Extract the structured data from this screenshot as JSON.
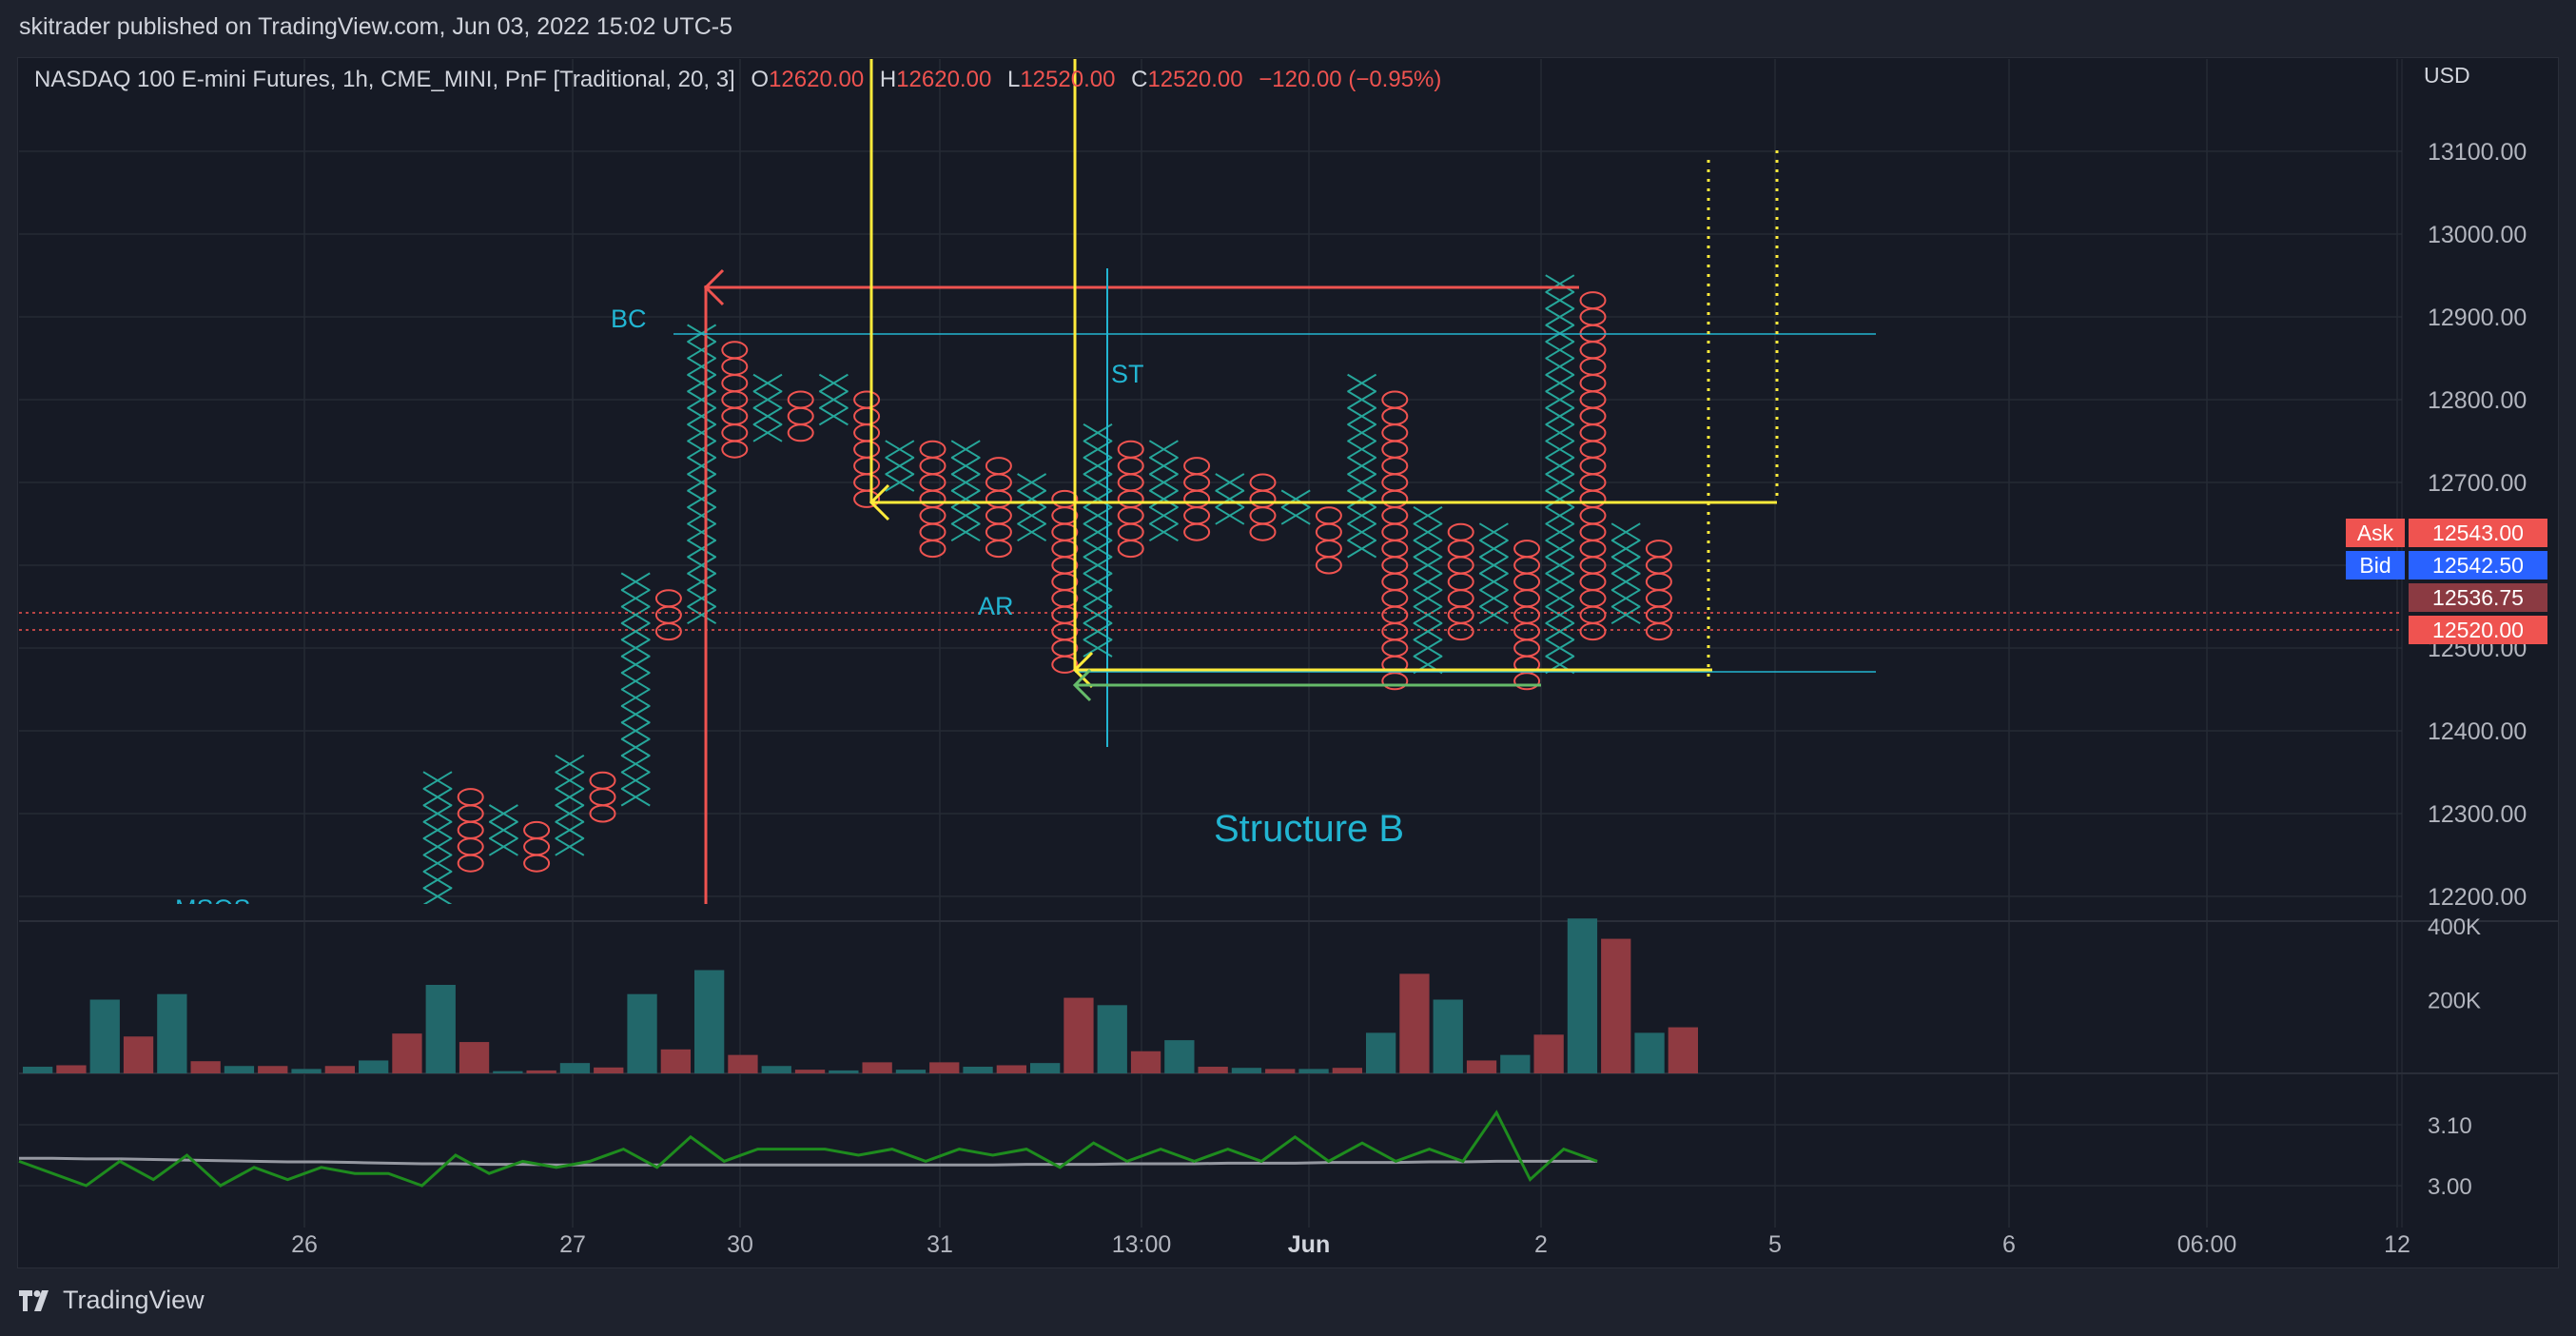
{
  "header": {
    "published": "skitrader published on TradingView.com, Jun 03, 2022 15:02 UTC-5"
  },
  "legend": {
    "symbol": "NASDAQ 100 E-mini Futures, 1h, CME_MINI, PnF [Traditional, 20, 3]",
    "o_label": "O",
    "o_value": "12620.00",
    "h_label": "H",
    "h_value": "12620.00",
    "l_label": "L",
    "l_value": "12520.00",
    "c_label": "C",
    "c_value": "12520.00",
    "change": "−120.00 (−0.95%)"
  },
  "currency": "USD",
  "price_tags": {
    "ask_label": "Ask",
    "ask_value": "12543.00",
    "bid_label": "Bid",
    "bid_value": "12542.50",
    "mid_value": "12536.75",
    "last_value": "12520.00"
  },
  "footer": {
    "brand": "TradingView"
  },
  "colors": {
    "up": "#26a69a",
    "down": "#ef5350",
    "yellow": "#ffeb3b",
    "cyan": "#22b5d2",
    "green": "#66bb6a",
    "text": "#b2b5be",
    "grid": "#252a35"
  },
  "chart_data": {
    "type": "point-and-figure",
    "box_size": 20,
    "reversal": 3,
    "price_axis": {
      "ticks": [
        "12200.00",
        "12300.00",
        "12400.00",
        "12500.00",
        "12600.00",
        "12700.00",
        "12800.00",
        "12900.00",
        "13000.00",
        "13100.00"
      ]
    },
    "time_axis": {
      "ticks": [
        "26",
        "27",
        "30",
        "31",
        "13:00",
        "Jun",
        "2",
        "5",
        "6",
        "06:00",
        "12"
      ]
    },
    "columns": [
      {
        "type": "X",
        "low": 12200,
        "high": 12340
      },
      {
        "type": "O",
        "low": 12240,
        "high": 12320
      },
      {
        "type": "X",
        "low": 12260,
        "high": 12300
      },
      {
        "type": "O",
        "low": 12240,
        "high": 12280
      },
      {
        "type": "X",
        "low": 12260,
        "high": 12360
      },
      {
        "type": "O",
        "low": 12300,
        "high": 12340
      },
      {
        "type": "X",
        "low": 12320,
        "high": 12580
      },
      {
        "type": "O",
        "low": 12520,
        "high": 12560
      },
      {
        "type": "X",
        "low": 12540,
        "high": 12880
      },
      {
        "type": "O",
        "low": 12740,
        "high": 12860
      },
      {
        "type": "X",
        "low": 12760,
        "high": 12820
      },
      {
        "type": "O",
        "low": 12760,
        "high": 12800
      },
      {
        "type": "X",
        "low": 12780,
        "high": 12820
      },
      {
        "type": "O",
        "low": 12680,
        "high": 12800
      },
      {
        "type": "X",
        "low": 12700,
        "high": 12740
      },
      {
        "type": "O",
        "low": 12620,
        "high": 12740
      },
      {
        "type": "X",
        "low": 12640,
        "high": 12740
      },
      {
        "type": "O",
        "low": 12620,
        "high": 12720
      },
      {
        "type": "X",
        "low": 12640,
        "high": 12700
      },
      {
        "type": "O",
        "low": 12480,
        "high": 12680
      },
      {
        "type": "X",
        "low": 12500,
        "high": 12760
      },
      {
        "type": "O",
        "low": 12620,
        "high": 12740
      },
      {
        "type": "X",
        "low": 12640,
        "high": 12740
      },
      {
        "type": "O",
        "low": 12640,
        "high": 12720
      },
      {
        "type": "X",
        "low": 12660,
        "high": 12700
      },
      {
        "type": "O",
        "low": 12640,
        "high": 12700
      },
      {
        "type": "X",
        "low": 12660,
        "high": 12680
      },
      {
        "type": "O",
        "low": 12600,
        "high": 12660
      },
      {
        "type": "X",
        "low": 12620,
        "high": 12820
      },
      {
        "type": "O",
        "low": 12460,
        "high": 12800
      },
      {
        "type": "X",
        "low": 12480,
        "high": 12660
      },
      {
        "type": "O",
        "low": 12520,
        "high": 12640
      },
      {
        "type": "X",
        "low": 12540,
        "high": 12640
      },
      {
        "type": "O",
        "low": 12460,
        "high": 12620
      },
      {
        "type": "X",
        "low": 12480,
        "high": 12940
      },
      {
        "type": "O",
        "low": 12520,
        "high": 12920
      },
      {
        "type": "X",
        "low": 12540,
        "high": 12640
      },
      {
        "type": "O",
        "low": 12520,
        "high": 12620
      }
    ],
    "volume": {
      "axis_ticks": [
        "400K",
        "200K"
      ],
      "bars": [
        {
          "v": 18000,
          "d": "up"
        },
        {
          "v": 22000,
          "d": "down"
        },
        {
          "v": 200000,
          "d": "up"
        },
        {
          "v": 100000,
          "d": "down"
        },
        {
          "v": 215000,
          "d": "up"
        },
        {
          "v": 33000,
          "d": "down"
        },
        {
          "v": 20000,
          "d": "up"
        },
        {
          "v": 20000,
          "d": "down"
        },
        {
          "v": 12000,
          "d": "up"
        },
        {
          "v": 20000,
          "d": "down"
        },
        {
          "v": 35000,
          "d": "up"
        },
        {
          "v": 108000,
          "d": "down"
        },
        {
          "v": 240000,
          "d": "up"
        },
        {
          "v": 85000,
          "d": "down"
        },
        {
          "v": 6000,
          "d": "up"
        },
        {
          "v": 8000,
          "d": "down"
        },
        {
          "v": 28000,
          "d": "up"
        },
        {
          "v": 16000,
          "d": "down"
        },
        {
          "v": 215000,
          "d": "up"
        },
        {
          "v": 65000,
          "d": "down"
        },
        {
          "v": 280000,
          "d": "up"
        },
        {
          "v": 50000,
          "d": "down"
        },
        {
          "v": 20000,
          "d": "up"
        },
        {
          "v": 10000,
          "d": "down"
        },
        {
          "v": 8000,
          "d": "up"
        },
        {
          "v": 30000,
          "d": "down"
        },
        {
          "v": 10000,
          "d": "up"
        },
        {
          "v": 30000,
          "d": "down"
        },
        {
          "v": 18000,
          "d": "up"
        },
        {
          "v": 22000,
          "d": "down"
        },
        {
          "v": 28000,
          "d": "up"
        },
        {
          "v": 205000,
          "d": "down"
        },
        {
          "v": 185000,
          "d": "up"
        },
        {
          "v": 60000,
          "d": "down"
        },
        {
          "v": 90000,
          "d": "up"
        },
        {
          "v": 18000,
          "d": "down"
        },
        {
          "v": 15000,
          "d": "up"
        },
        {
          "v": 12000,
          "d": "down"
        },
        {
          "v": 12000,
          "d": "up"
        },
        {
          "v": 15000,
          "d": "down"
        },
        {
          "v": 110000,
          "d": "up"
        },
        {
          "v": 270000,
          "d": "down"
        },
        {
          "v": 200000,
          "d": "up"
        },
        {
          "v": 35000,
          "d": "down"
        },
        {
          "v": 50000,
          "d": "up"
        },
        {
          "v": 105000,
          "d": "down"
        },
        {
          "v": 420000,
          "d": "up"
        },
        {
          "v": 365000,
          "d": "down"
        },
        {
          "v": 110000,
          "d": "up"
        },
        {
          "v": 125000,
          "d": "down"
        }
      ]
    },
    "indicator": {
      "axis_ticks": [
        "3.10",
        "3.00"
      ],
      "green": [
        3.04,
        3.02,
        3.0,
        3.04,
        3.01,
        3.05,
        3.0,
        3.03,
        3.01,
        3.03,
        3.02,
        3.02,
        3.0,
        3.05,
        3.02,
        3.04,
        3.03,
        3.04,
        3.06,
        3.03,
        3.08,
        3.04,
        3.06,
        3.06,
        3.06,
        3.05,
        3.06,
        3.04,
        3.06,
        3.05,
        3.06,
        3.03,
        3.07,
        3.04,
        3.06,
        3.04,
        3.06,
        3.04,
        3.08,
        3.04,
        3.07,
        3.04,
        3.06,
        3.04,
        3.12,
        3.01,
        3.06,
        3.04
      ],
      "gray": [
        3.045,
        3.045,
        3.044,
        3.044,
        3.043,
        3.042,
        3.041,
        3.04,
        3.039,
        3.039,
        3.038,
        3.037,
        3.036,
        3.036,
        3.035,
        3.035,
        3.034,
        3.034,
        3.034,
        3.034,
        3.034,
        3.034,
        3.034,
        3.034,
        3.034,
        3.034,
        3.034,
        3.034,
        3.034,
        3.034,
        3.035,
        3.035,
        3.035,
        3.036,
        3.036,
        3.036,
        3.037,
        3.037,
        3.037,
        3.038,
        3.038,
        3.038,
        3.039,
        3.039,
        3.04,
        3.04,
        3.04,
        3.04
      ]
    },
    "annotations": [
      "BC",
      "ST",
      "AR",
      "Structure B",
      "MSOS"
    ]
  }
}
